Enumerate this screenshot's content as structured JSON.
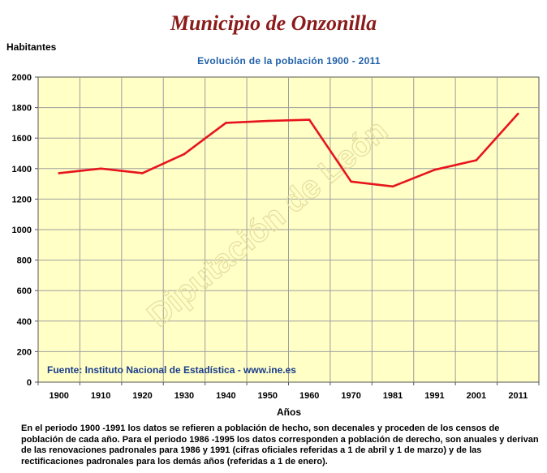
{
  "page_title": "Municipio de Onzonilla",
  "watermark": "Diputación de León",
  "source_note": "Fuente: Instituto Nacional de Estadística - www.ine.es",
  "footnote": "En el periodo 1900 -1991 los datos se refieren a población de hecho, son decenales y proceden de los censos de población de cada año. Para el periodo 1986 -1995 los datos corresponden a población de derecho, son anuales y derivan de las renovaciones padronales para 1986 y 1991 (cifras oficiales referidas a 1 de abril y 1 de marzo) y de las rectificaciones padronales para los demás años (referidas a 1 de enero).",
  "colors": {
    "plot_bg": "#ffffc6",
    "line": "#e8141c",
    "grid": "#9e9e9e",
    "title": "#8b1a1a",
    "subtitle": "#1f5fa8",
    "source": "#1a3c8c"
  },
  "chart_data": {
    "type": "line",
    "title": "Evolución de la población 1900 - 2011",
    "xlabel": "Años",
    "ylabel": "Habitantes",
    "ylim": [
      0,
      2000
    ],
    "yticks": [
      0,
      200,
      400,
      600,
      800,
      1000,
      1200,
      1400,
      1600,
      1800,
      2000
    ],
    "grid": true,
    "categories": [
      "1900",
      "1910",
      "1920",
      "1930",
      "1940",
      "1950",
      "1960",
      "1970",
      "1981",
      "1991",
      "2001",
      "2011"
    ],
    "series": [
      {
        "values": [
          1370,
          1400,
          1370,
          1495,
          1700,
          1712,
          1720,
          1315,
          1283,
          1392,
          1455,
          1760
        ]
      }
    ]
  }
}
